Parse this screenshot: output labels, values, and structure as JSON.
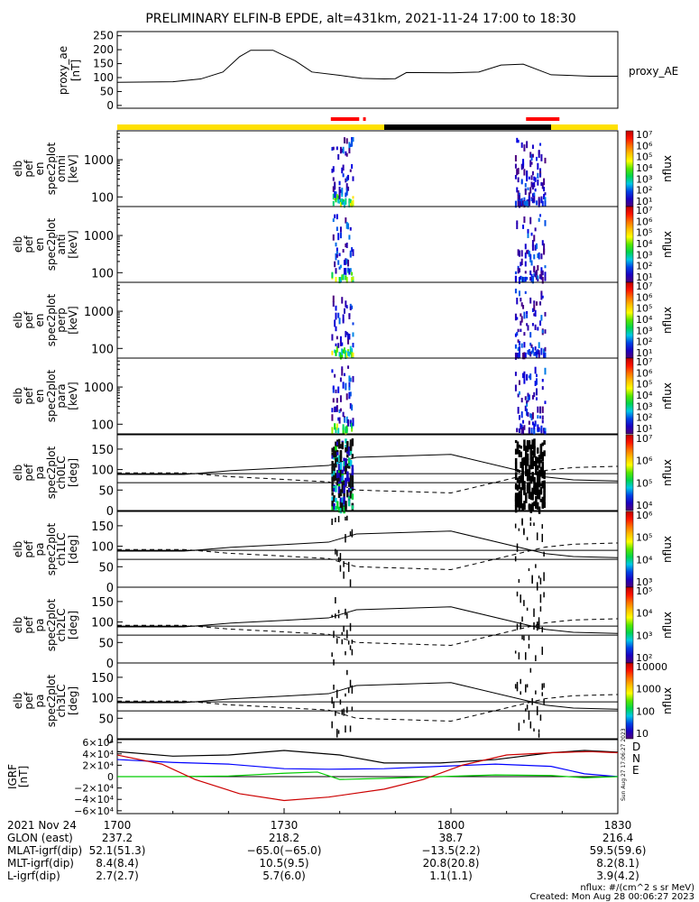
{
  "title": "PRELIMINARY ELFIN-B EPDE, alt=431km, 2021-11-24 17:00 to 18:30",
  "chart_data": [
    {
      "type": "line",
      "panel": "proxy_ae",
      "ylabel": [
        "proxy_ae",
        "[nT]"
      ],
      "side_label": "proxy_AE",
      "yticks": [
        0,
        50,
        100,
        150,
        200,
        250
      ],
      "ylim": [
        -10,
        265
      ],
      "series": [
        {
          "values": [
            [
              0,
              83
            ],
            [
              10,
              85
            ],
            [
              15,
              95
            ],
            [
              19,
              120
            ],
            [
              22,
              175
            ],
            [
              24,
              198
            ],
            [
              28,
              198
            ],
            [
              32,
              160
            ],
            [
              35,
              120
            ],
            [
              40,
              108
            ],
            [
              44,
              97
            ],
            [
              48,
              95
            ],
            [
              50,
              96
            ],
            [
              52,
              118
            ],
            [
              60,
              117
            ],
            [
              65,
              120
            ],
            [
              69,
              145
            ],
            [
              73,
              148
            ],
            [
              78,
              110
            ],
            [
              85,
              105
            ],
            [
              90,
              105
            ]
          ]
        }
      ]
    },
    {
      "type": "spectrogram",
      "panel": "omni",
      "ylabel": [
        "elb",
        "pef",
        "en",
        "spec2plot",
        "omni",
        "[keV]"
      ],
      "yticks": [
        100,
        1000
      ],
      "colorbar": {
        "label": "nflux",
        "ticks": [
          "10⁷",
          "10⁶",
          "10⁵",
          "10⁴",
          "10³",
          "10²",
          "10¹"
        ]
      }
    },
    {
      "type": "spectrogram",
      "panel": "anti",
      "ylabel": [
        "elb",
        "pef",
        "en",
        "spec2plot",
        "anti",
        "[keV]"
      ],
      "yticks": [
        100,
        1000
      ],
      "colorbar": {
        "label": "nflux",
        "ticks": [
          "10⁷",
          "10⁶",
          "10⁵",
          "10⁴",
          "10³",
          "10²",
          "10¹"
        ]
      }
    },
    {
      "type": "spectrogram",
      "panel": "perp",
      "ylabel": [
        "elb",
        "pef",
        "en",
        "spec2plot",
        "perp",
        "[keV]"
      ],
      "yticks": [
        100,
        1000
      ],
      "colorbar": {
        "label": "nflux",
        "ticks": [
          "10⁷",
          "10⁶",
          "10⁵",
          "10⁴",
          "10³",
          "10²",
          "10¹"
        ]
      }
    },
    {
      "type": "spectrogram",
      "panel": "para",
      "ylabel": [
        "elb",
        "pef",
        "en",
        "spec2plot",
        "para",
        "[keV]"
      ],
      "yticks": [
        100,
        1000
      ],
      "colorbar": {
        "label": "nflux",
        "ticks": [
          "10⁷",
          "10⁶",
          "10⁵",
          "10⁴",
          "10³",
          "10²",
          "10¹"
        ]
      }
    },
    {
      "type": "spectrogram",
      "panel": "ch0LC",
      "ylabel": [
        "elb",
        "pef",
        "pa",
        "spec2plot",
        "ch0LC",
        "[deg]"
      ],
      "yticks": [
        0,
        50,
        100,
        150
      ],
      "colorbar": {
        "label": "nflux",
        "ticks": [
          "10⁷",
          "10⁶",
          "10⁵",
          "10⁴"
        ]
      }
    },
    {
      "type": "spectrogram",
      "panel": "ch1LC",
      "ylabel": [
        "elb",
        "pef",
        "pa",
        "spec2plot",
        "ch1LC",
        "[deg]"
      ],
      "yticks": [
        0,
        50,
        100,
        150
      ],
      "colorbar": {
        "label": "nflux",
        "ticks": [
          "10⁶",
          "10⁵",
          "10⁴",
          "10³"
        ]
      }
    },
    {
      "type": "spectrogram",
      "panel": "ch2LC",
      "ylabel": [
        "elb",
        "pef",
        "pa",
        "spec2plot",
        "ch2LC",
        "[deg]"
      ],
      "yticks": [
        0,
        50,
        100,
        150
      ],
      "colorbar": {
        "label": "nflux",
        "ticks": [
          "10⁵",
          "10⁴",
          "10³",
          "10²"
        ]
      }
    },
    {
      "type": "spectrogram",
      "panel": "ch3LC",
      "ylabel": [
        "elb",
        "pef",
        "pa",
        "spec2plot",
        "ch3LC",
        "[deg]"
      ],
      "yticks": [
        0,
        50,
        100,
        150
      ],
      "colorbar": {
        "label": "nflux",
        "ticks": [
          "10000",
          "1000",
          "100",
          "10"
        ]
      }
    },
    {
      "type": "line",
      "panel": "igrf",
      "ylabel": [
        "IGRF",
        "[nT]"
      ],
      "yticks": [
        "6×10⁴",
        "4×10⁴",
        "2×10⁴",
        "0",
        "−2×10⁴",
        "−4×10⁴",
        "−6×10⁴"
      ],
      "legend": [
        "D",
        "N",
        "E"
      ]
    }
  ],
  "x_axis": {
    "date": "2021 Nov 24",
    "ticks": [
      "1700",
      "1730",
      "1800",
      "1830"
    ],
    "rows": [
      {
        "label": "GLON (east)",
        "values": [
          "237.2",
          "218.2",
          "38.7",
          "216.4"
        ]
      },
      {
        "label": "MLAT-igrf(dip)",
        "values": [
          "52.1(51.3)",
          "−65.0(−65.0)",
          "−13.5(2.2)",
          "59.5(59.6)"
        ]
      },
      {
        "label": "MLT-igrf(dip)",
        "values": [
          "8.4(8.4)",
          "10.5(9.5)",
          "20.8(20.8)",
          "8.2(8.1)"
        ]
      },
      {
        "label": "L-igrf(dip)",
        "values": [
          "2.7(2.7)",
          "5.7(6.0)",
          "1.1(1.1)",
          "3.9(4.2)"
        ]
      }
    ]
  },
  "footer": {
    "units": "nflux: #/(cm^2 s sr MeV)",
    "created": "Created: Mon Aug 28 00:06:27 2023",
    "side_stamp": "Sun Aug 27 17:06:27 2023"
  },
  "colors": {
    "day": "#ffe000",
    "night": "#000000",
    "science": "#ff0000",
    "D": "#cc0000",
    "N": "#0000ff",
    "E": "#00cc00"
  }
}
